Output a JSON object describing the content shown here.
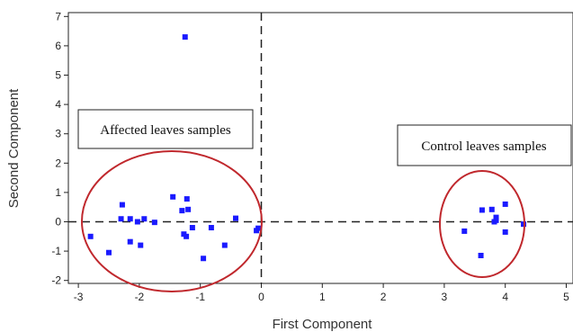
{
  "chart_data": {
    "type": "scatter",
    "xlabel": "First Component",
    "ylabel": "Second Component",
    "xlim": [
      -3.2,
      5.1
    ],
    "ylim": [
      -2.2,
      7.2
    ],
    "xticks": [
      "-3",
      "-2",
      "-1",
      "0",
      "1",
      "2",
      "3",
      "4",
      "5"
    ],
    "yticks": [
      "-2",
      "-1",
      "0",
      "1",
      "2",
      "3",
      "4",
      "5",
      "6",
      "7"
    ],
    "grid": false,
    "reference_lines": {
      "vertical_x": 0,
      "horizontal_y": 0
    },
    "point_color": "#1a1aff",
    "ellipse_color": "#c0282d",
    "series": [
      {
        "values": [
          [
            -2.8,
            -0.5
          ],
          [
            -2.5,
            -1.05
          ],
          [
            -2.3,
            0.1
          ],
          [
            -2.28,
            0.58
          ],
          [
            -2.15,
            0.1
          ],
          [
            -2.15,
            -0.68
          ],
          [
            -2.03,
            0.0
          ],
          [
            -1.98,
            -0.8
          ],
          [
            -1.92,
            0.1
          ],
          [
            -1.75,
            -0.02
          ],
          [
            -1.45,
            0.85
          ],
          [
            -1.3,
            0.38
          ],
          [
            -1.27,
            -0.42
          ],
          [
            -1.23,
            -0.5
          ],
          [
            -1.22,
            0.78
          ],
          [
            -1.2,
            0.42
          ],
          [
            -1.13,
            -0.2
          ],
          [
            -0.95,
            -1.25
          ],
          [
            -0.82,
            -0.2
          ],
          [
            -0.6,
            -0.8
          ],
          [
            -0.42,
            0.12
          ],
          [
            -0.08,
            -0.3
          ],
          [
            -0.05,
            -0.22
          ],
          [
            -1.25,
            6.3
          ],
          [
            3.33,
            -0.32
          ],
          [
            3.6,
            -1.15
          ],
          [
            3.62,
            0.4
          ],
          [
            3.78,
            0.42
          ],
          [
            3.82,
            0.0
          ],
          [
            3.85,
            0.15
          ],
          [
            3.85,
            0.05
          ],
          [
            4.0,
            0.6
          ],
          [
            4.0,
            -0.35
          ],
          [
            4.3,
            -0.08
          ]
        ]
      }
    ],
    "annotations": [
      {
        "text": "Affected leaves samples"
      },
      {
        "text": "Control leaves samples"
      }
    ]
  }
}
